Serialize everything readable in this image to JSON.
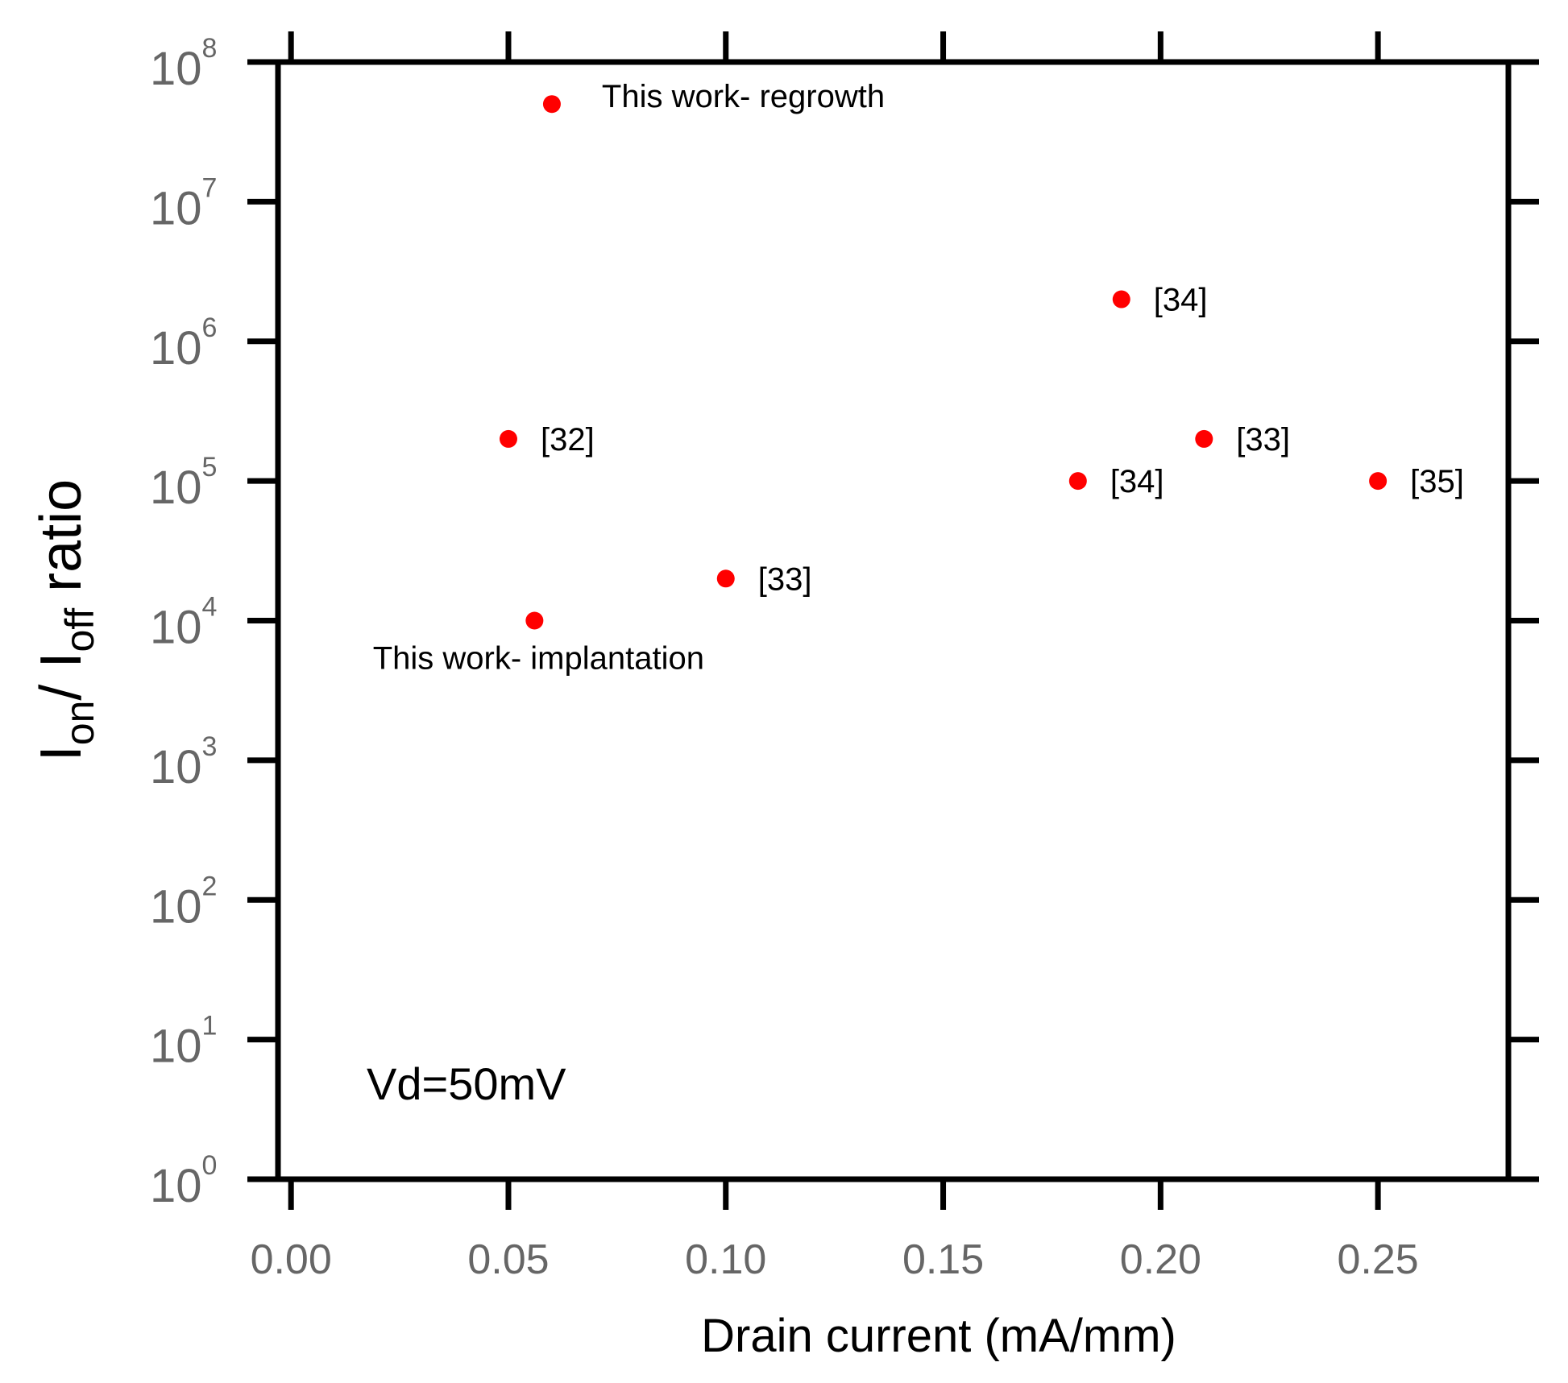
{
  "chart_data": {
    "type": "scatter",
    "xlabel": "Drain current (mA/mm)",
    "ylabel": {
      "prefix": "I",
      "sub1": "on",
      "mid": "/ I",
      "sub2": "off",
      "suffix": " ratio"
    },
    "x_scale": "linear",
    "y_scale": "log",
    "xlim": [
      -0.003,
      0.28
    ],
    "ylim": [
      1,
      100000000
    ],
    "x_ticks": [
      0.0,
      0.05,
      0.1,
      0.15,
      0.2,
      0.25
    ],
    "x_tick_labels": [
      "0.00",
      "0.05",
      "0.10",
      "0.15",
      "0.20",
      "0.25"
    ],
    "y_tick_exponents": [
      0,
      1,
      2,
      3,
      4,
      5,
      6,
      7,
      8
    ],
    "y_tick_base": "10",
    "annotation": "Vd=50mV",
    "marker_color": "#ff0000",
    "points": [
      {
        "x": 0.06,
        "y": 50000000,
        "label": "This work- regrowth"
      },
      {
        "x": 0.191,
        "y": 2000000,
        "label": "[34]"
      },
      {
        "x": 0.05,
        "y": 200000,
        "label": "[32]"
      },
      {
        "x": 0.21,
        "y": 200000,
        "label": "[33]"
      },
      {
        "x": 0.181,
        "y": 100000,
        "label": "[34]"
      },
      {
        "x": 0.25,
        "y": 100000,
        "label": "[35]"
      },
      {
        "x": 0.1,
        "y": 20000,
        "label": "[33]"
      },
      {
        "x": 0.056,
        "y": 10000,
        "label": "This work- implantation"
      }
    ]
  }
}
